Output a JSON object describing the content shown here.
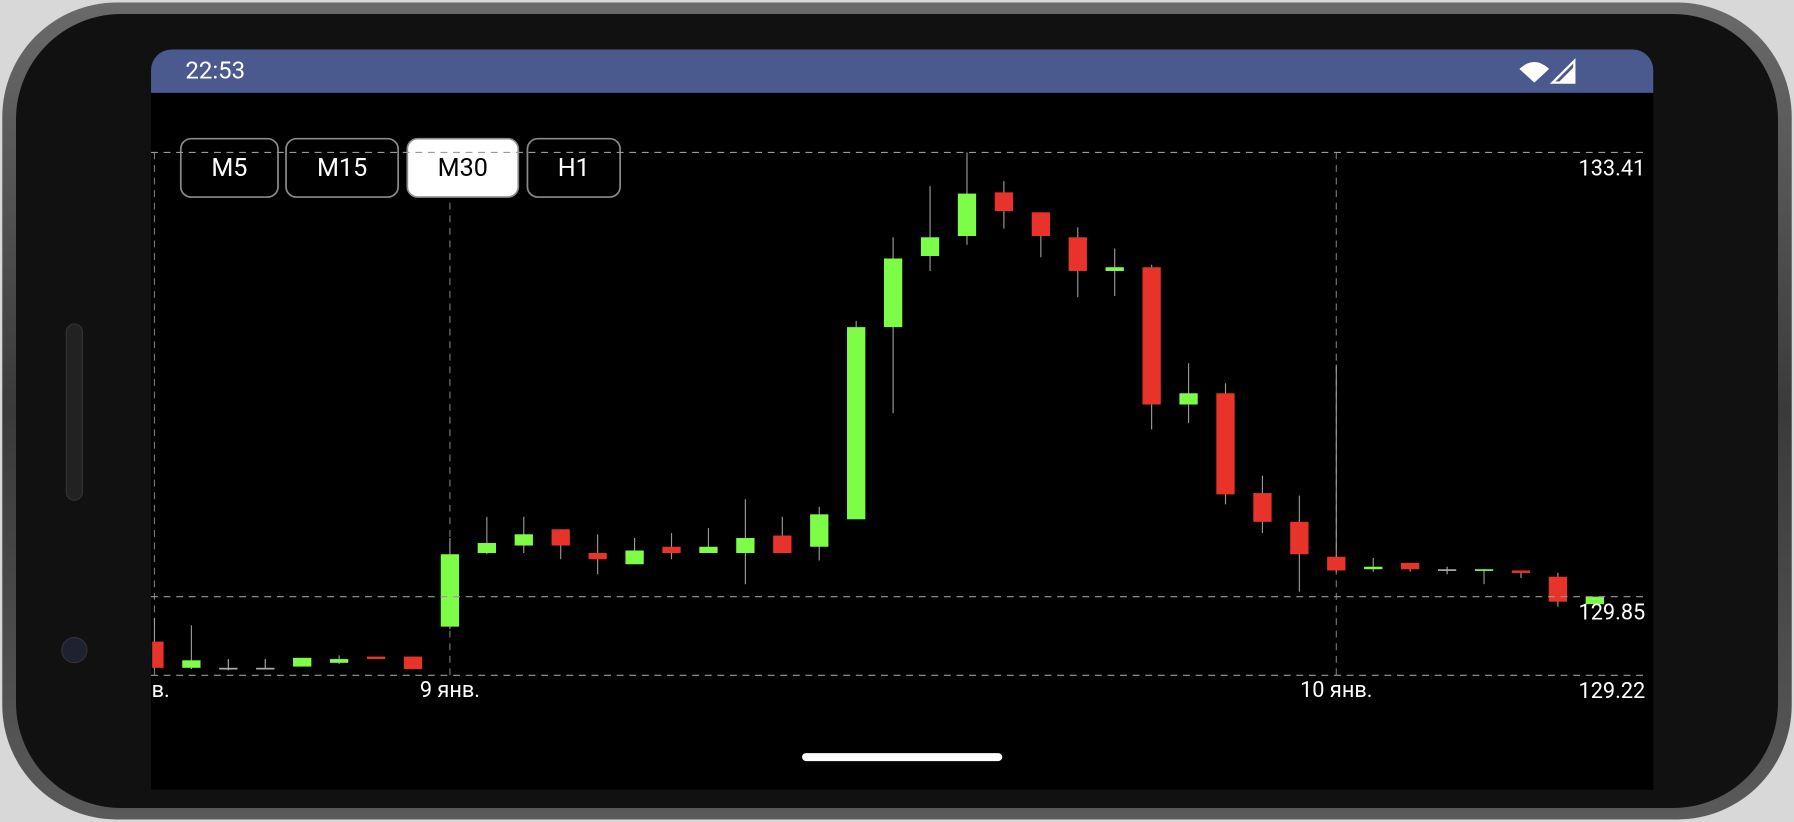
{
  "status_bar": {
    "time": "22:53"
  },
  "buttons": [
    {
      "label": "M5",
      "selected": false
    },
    {
      "label": "M15",
      "selected": false
    },
    {
      "label": "M30",
      "selected": true
    },
    {
      "label": "H1",
      "selected": false
    }
  ],
  "chart_data": {
    "type": "candlestick",
    "categories": [
      "нв.",
      null,
      null,
      null,
      null,
      null,
      null,
      null,
      "9 янв.",
      null,
      null,
      null,
      null,
      null,
      null,
      null,
      null,
      null,
      null,
      null,
      null,
      null,
      null,
      null,
      null,
      null,
      null,
      null,
      null,
      null,
      null,
      null,
      "10 янв.",
      null,
      null,
      null,
      null,
      null,
      null,
      null
    ],
    "open": [
      129.49,
      129.28,
      129.28,
      129.28,
      129.29,
      129.32,
      129.37,
      129.37,
      129.61,
      130.2,
      130.26,
      130.39,
      130.2,
      130.11,
      130.25,
      130.2,
      130.2,
      130.34,
      130.25,
      130.47,
      132.01,
      132.58,
      132.74,
      133.09,
      132.93,
      132.73,
      132.46,
      132.49,
      131.39,
      131.48,
      130.68,
      130.45,
      130.17,
      130.07,
      130.12,
      130.07,
      130.06,
      130.06,
      130.01,
      129.79
    ],
    "high": [
      129.68,
      129.62,
      129.35,
      129.35,
      129.36,
      129.38,
      129.37,
      129.37,
      130.32,
      130.49,
      130.49,
      130.39,
      130.35,
      130.32,
      130.36,
      130.4,
      130.63,
      130.49,
      130.57,
      132.06,
      132.73,
      133.14,
      133.41,
      133.18,
      132.93,
      132.81,
      132.64,
      132.51,
      131.72,
      131.56,
      130.82,
      130.66,
      131.71,
      130.16,
      130.12,
      130.09,
      130.07,
      130.06,
      130.04,
      129.85
    ],
    "low": [
      129.27,
      129.27,
      129.26,
      129.27,
      129.29,
      129.31,
      129.35,
      129.27,
      129.59,
      130.19,
      130.2,
      130.15,
      130.03,
      130.11,
      130.15,
      130.2,
      129.95,
      130.2,
      130.14,
      130.47,
      131.32,
      132.46,
      132.67,
      132.8,
      132.57,
      132.25,
      132.26,
      131.19,
      131.24,
      130.59,
      130.36,
      129.89,
      130.05,
      130.05,
      130.05,
      130.03,
      129.95,
      130.0,
      129.77,
      129.79
    ],
    "close": [
      129.28,
      129.34,
      129.28,
      129.28,
      129.36,
      129.35,
      129.35,
      129.27,
      130.19,
      130.28,
      130.35,
      130.26,
      130.15,
      130.22,
      130.2,
      130.25,
      130.32,
      130.2,
      130.51,
      132.01,
      132.56,
      132.73,
      133.08,
      132.94,
      132.74,
      132.46,
      132.49,
      131.39,
      131.48,
      130.67,
      130.45,
      130.19,
      130.06,
      130.09,
      130.07,
      130.07,
      130.07,
      130.04,
      129.81,
      129.85
    ],
    "up_color": "#7dfc48",
    "down_color": "#e8332a",
    "ylim": [
      129.22,
      133.41
    ],
    "yticks": [
      129.22,
      129.85,
      133.41
    ],
    "grid": true
  }
}
